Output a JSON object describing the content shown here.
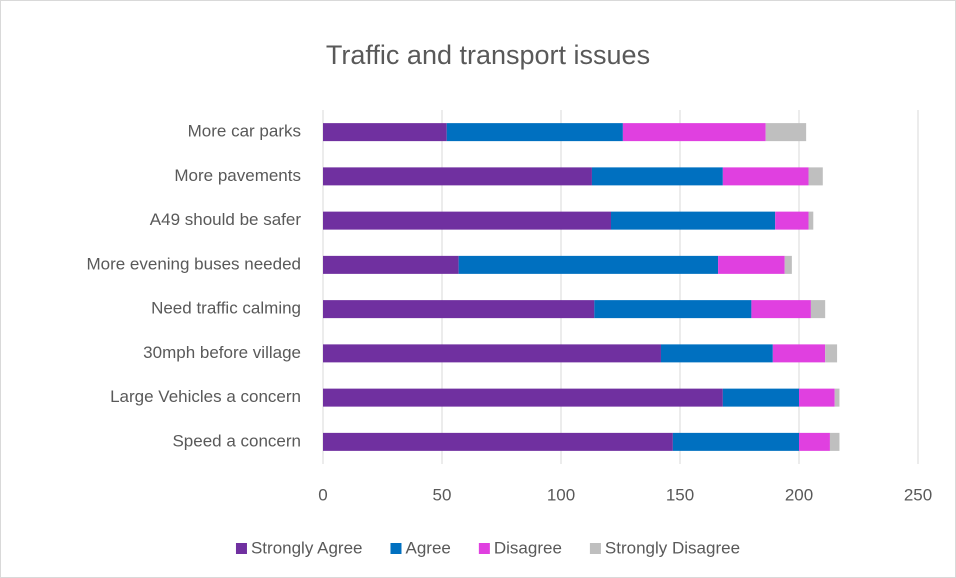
{
  "chart_data": {
    "type": "bar",
    "orientation": "horizontal",
    "stacked": true,
    "title": "Traffic and transport issues",
    "categories": [
      "More car parks",
      "More pavements",
      "A49 should be safer",
      "More evening buses needed",
      "Need traffic calming",
      "30mph before village",
      "Large Vehicles a concern",
      "Speed a concern"
    ],
    "series": [
      {
        "name": "Strongly Agree",
        "color": "#7030a0",
        "values": [
          52,
          113,
          121,
          57,
          114,
          142,
          168,
          147
        ]
      },
      {
        "name": "Agree",
        "color": "#0070c0",
        "values": [
          74,
          55,
          69,
          109,
          66,
          47,
          32,
          53
        ]
      },
      {
        "name": "Disagree",
        "color": "#e040e0",
        "values": [
          60,
          36,
          14,
          28,
          25,
          22,
          15,
          13
        ]
      },
      {
        "name": "Strongly Disagree",
        "color": "#bfbfbf",
        "values": [
          17,
          6,
          2,
          3,
          6,
          5,
          2,
          4
        ]
      }
    ],
    "xlim": [
      0,
      250
    ],
    "xticks": [
      0,
      50,
      100,
      150,
      200,
      250
    ],
    "grid": true,
    "legend": "bottom"
  }
}
